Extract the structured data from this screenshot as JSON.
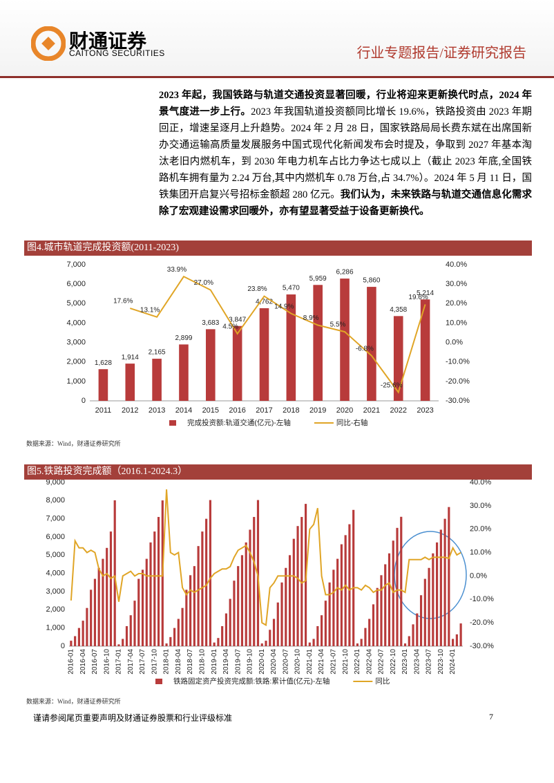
{
  "header": {
    "logo_text": "财通证券",
    "logo_subtext": "CAITONG SECURITIES",
    "report_type": "行业专题报告/证券研究报告"
  },
  "paragraph": [
    {
      "text": "2023 年起，我国铁路与轨道交通投资显著回暖，行业将迎来更新换代时点，2024 年景气度进一步上行。",
      "bold": true
    },
    {
      "text": "2023 年我国轨道投资额同比增长 19.6%，铁路投资由 2023 年期回正，增速呈逐月上升趋势。2024 年 2 月 28 日，国家铁路局局长费东斌在出席国新办交通运输高质量发展服务中国式现代化新闻发布会时提及，争取到 2027 年基本淘汰老旧内燃机车，到 2030 年电力机车占比力争达七成以上（截止 2023 年底,全国铁路机车拥有量为 2.24 万台,其中内燃机车 0.78 万台,占 34.7%）。2024 年 5 月 11 日，国铁集团开启复兴号招标金额超 280 亿元。",
      "bold": false
    },
    {
      "text": "我们认为，未来铁路与轨道交通信息化需求除了宏观建设需求回暖外，亦有望显著受益于设备更新换代。",
      "bold": true
    }
  ],
  "chart_data": [
    {
      "type": "bar",
      "title": "图4.城市轨道完成投资额(2011-2023)",
      "source": "数据来源：Wind，财通证券研究所",
      "categories": [
        "2011",
        "2012",
        "2013",
        "2014",
        "2015",
        "2016",
        "2017",
        "2018",
        "2019",
        "2020",
        "2021",
        "2022",
        "2023"
      ],
      "series": [
        {
          "name": "完成投资额:轨道交通(亿元)-左轴",
          "type": "bar",
          "color": "#b83b3b",
          "values": [
            1628,
            1914,
            2165,
            2899,
            3683,
            3847,
            4762,
            5470,
            5959,
            6286,
            5860,
            4358,
            5214
          ],
          "value_labels": [
            "1,628",
            "1,914",
            "2,165",
            "2,899",
            "3,683",
            "3,847",
            "4,762",
            "5,470",
            "5,959",
            "6,286",
            "5,860",
            "4,358",
            "5,214"
          ]
        },
        {
          "name": "同比-右轴",
          "type": "line",
          "axis": "y2",
          "color": "#e0a526",
          "values": [
            null,
            17.6,
            13.1,
            33.9,
            27.0,
            4.5,
            23.8,
            14.9,
            8.9,
            5.5,
            -6.8,
            -25.6,
            19.6
          ],
          "value_labels": [
            null,
            "17.6%",
            "13.1%",
            "33.9%",
            "27.0%",
            "4.5%",
            "23.8%",
            "14.9%",
            "8.9%",
            "5.5%",
            "-6.8%",
            "-25.6%",
            "19.6%"
          ]
        }
      ],
      "ylim": [
        0,
        7000
      ],
      "yticks": [
        0,
        {
          "value": 1000,
          "label": "1,000"
        },
        {
          "value": 2000,
          "label": "2,000"
        },
        {
          "value": 3000,
          "label": "3,000"
        },
        {
          "value": 4000,
          "label": "4,000"
        },
        {
          "value": 5000,
          "label": "5,000"
        },
        {
          "value": 6000,
          "label": "6,000"
        },
        {
          "value": 7000,
          "label": "7,000"
        }
      ],
      "y2lim": [
        -30,
        40
      ],
      "y2ticks": [
        {
          "value": -30,
          "label": "-30.0%"
        },
        {
          "value": -20,
          "label": "-20.0%"
        },
        {
          "value": -10,
          "label": "-10.0%"
        },
        {
          "value": 0,
          "label": "0.0%"
        },
        {
          "value": 10,
          "label": "10.0%"
        },
        {
          "value": 20,
          "label": "20.0%"
        },
        {
          "value": 30,
          "label": "30.0%"
        },
        {
          "value": 40,
          "label": "40.0%"
        }
      ],
      "legend": "bottom"
    },
    {
      "type": "bar",
      "title": "图5.铁路投资完成额（2016.1-2024.3）",
      "source": "数据来源：Wind，财通证券研究所",
      "categories": [
        "2016-01",
        null,
        null,
        "2016-04",
        null,
        null,
        "2016-07",
        null,
        null,
        "2016-10",
        null,
        null,
        "2017-01",
        null,
        null,
        "2017-04",
        null,
        null,
        "2017-07",
        null,
        null,
        "2017-10",
        null,
        null,
        "2018-01",
        null,
        null,
        "2018-04",
        null,
        null,
        "2018-07",
        null,
        null,
        "2018-10",
        null,
        null,
        "2019-01",
        null,
        null,
        "2019-04",
        null,
        null,
        "2019-07",
        null,
        null,
        "2019-10",
        null,
        null,
        "2020-01",
        null,
        null,
        "2020-04",
        null,
        null,
        "2020-07",
        null,
        null,
        "2020-10",
        null,
        null,
        "2021-01",
        null,
        null,
        "2021-04",
        null,
        null,
        "2021-07",
        null,
        null,
        "2021-10",
        null,
        null,
        "2022-01",
        null,
        null,
        "2022-04",
        null,
        null,
        "2022-07",
        null,
        null,
        "2022-10",
        null,
        null,
        "2023-01",
        null,
        null,
        "2023-04",
        null,
        null,
        "2023-07",
        null,
        null,
        "2023-10",
        null,
        null,
        "2024-01",
        null,
        null
      ],
      "series": [
        {
          "name": "铁路固定资产投资完成额:铁路:累计值(亿元)-左轴",
          "type": "bar",
          "color": "#b83b3b",
          "values": [
            300,
            550,
            1000,
            1400,
            2100,
            3100,
            3700,
            4300,
            4800,
            5400,
            6300,
            8015,
            100,
            400,
            1100,
            1700,
            2500,
            3700,
            4200,
            4800,
            5700,
            6300,
            7100,
            8010,
            150,
            500,
            1000,
            1500,
            2100,
            3100,
            3900,
            4400,
            5500,
            6300,
            7000,
            8028,
            200,
            450,
            1100,
            1800,
            2600,
            3600,
            4400,
            5000,
            5700,
            6400,
            7100,
            8029,
            150,
            300,
            900,
            1500,
            2400,
            3500,
            4300,
            5000,
            5900,
            6600,
            7100,
            7819,
            200,
            400,
            1100,
            1700,
            2500,
            3500,
            4200,
            4800,
            5600,
            6100,
            6700,
            7489,
            150,
            400,
            1000,
            1500,
            2300,
            3200,
            3900,
            4500,
            5100,
            5800,
            6500,
            7109,
            150,
            550,
            1200,
            1800,
            2800,
            3700,
            4300,
            5100,
            5700,
            6400,
            7000,
            7645,
            400,
            650,
            1250
          ]
        },
        {
          "name": "同比",
          "type": "line",
          "axis": "y2",
          "color": "#e0a526",
          "values": [
            -10.5,
            15,
            12,
            12,
            10,
            11,
            10,
            3,
            0,
            1,
            -1,
            0,
            -11,
            0,
            1,
            2,
            0,
            1,
            1,
            0,
            0,
            0,
            0,
            0,
            37,
            10,
            9,
            10,
            -5,
            -8,
            -6,
            -7,
            -6,
            -5,
            -4,
            -1,
            1,
            2,
            3,
            3,
            4,
            8,
            11,
            12,
            13,
            10,
            6,
            0,
            -20,
            -21,
            -5,
            -3,
            0,
            0,
            0,
            0,
            0,
            -1,
            -3,
            -2,
            20,
            22,
            29,
            0,
            -8,
            -8,
            -7,
            -5,
            -6,
            -4,
            -6,
            -5,
            -5,
            -6,
            -4,
            -5,
            -7,
            -6,
            -6,
            -4,
            -3,
            -7,
            -6,
            -6,
            -7,
            7,
            7,
            7,
            7,
            8,
            7,
            8,
            8,
            8,
            8,
            7.5,
            12,
            9,
            10
          ]
        }
      ],
      "ylim": [
        0,
        9000
      ],
      "yticks": [
        0,
        {
          "value": 1000,
          "label": "1,000"
        },
        {
          "value": 2000,
          "label": "2,000"
        },
        {
          "value": 3000,
          "label": "3,000"
        },
        {
          "value": 4000,
          "label": "4,000"
        },
        {
          "value": 5000,
          "label": "5,000"
        },
        {
          "value": 6000,
          "label": "6,000"
        },
        {
          "value": 7000,
          "label": "7,000"
        },
        {
          "value": 8000,
          "label": "8,000"
        },
        {
          "value": 9000,
          "label": "9,000"
        }
      ],
      "y2lim": [
        -30,
        40
      ],
      "y2ticks": [
        {
          "value": -30,
          "label": "-30.0%"
        },
        {
          "value": -20,
          "label": "-20.0%"
        },
        {
          "value": -10,
          "label": "-10.0%"
        },
        {
          "value": 0,
          "label": "0.0%"
        },
        {
          "value": 10,
          "label": "10.0%"
        },
        {
          "value": 20,
          "label": "20.0%"
        },
        {
          "value": 30,
          "label": "30.0%"
        },
        {
          "value": 40,
          "label": "40.0%"
        }
      ],
      "legend": "bottom"
    }
  ],
  "footer": {
    "disclaimer": "谨请参阅尾页重要声明及财通证券股票和行业评级标准",
    "page": "7"
  }
}
